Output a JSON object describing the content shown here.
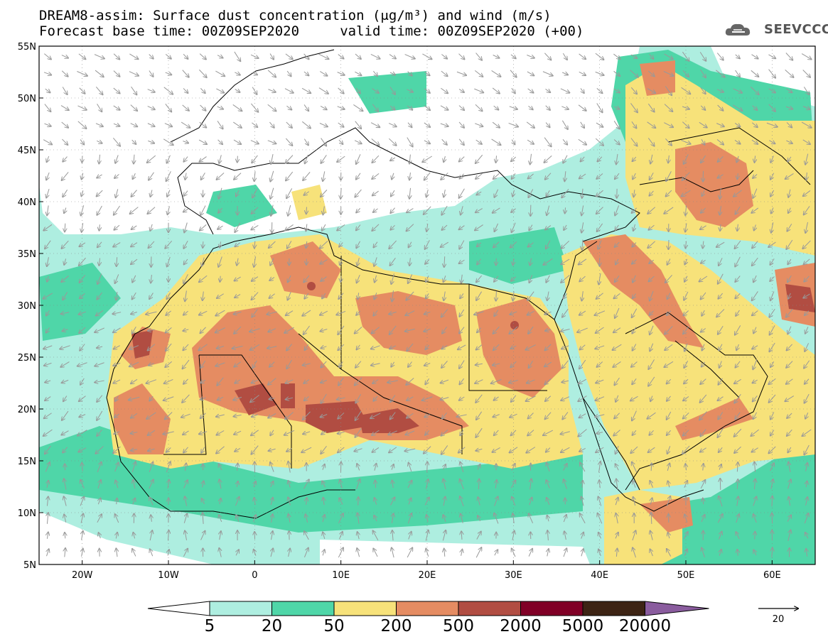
{
  "header": {
    "title_line1": "DREAM8-assim: Surface dust concentration (μg/m³) and wind (m/s)",
    "title_line2": "Forecast base time: 00Z09SEP2020     valid time: 00Z09SEP2020 (+00)",
    "logo_text": "SEEVCCC"
  },
  "map": {
    "lat_labels": [
      "55N",
      "50N",
      "45N",
      "40N",
      "35N",
      "30N",
      "25N",
      "20N",
      "15N",
      "10N",
      "5N"
    ],
    "lon_labels": [
      "20W",
      "10W",
      "0",
      "10E",
      "20E",
      "30E",
      "40E",
      "50E",
      "60E"
    ],
    "lat_range": [
      5,
      55
    ],
    "lon_range": [
      -25,
      65
    ]
  },
  "legend": {
    "thresholds": [
      "5",
      "20",
      "50",
      "200",
      "500",
      "2000",
      "5000",
      "20000"
    ],
    "colors": [
      "#ffffff",
      "#aeeee0",
      "#4fd6a8",
      "#f7e27a",
      "#e58c62",
      "#b14d42",
      "#800026",
      "#3d2414",
      "#8a5c9e"
    ],
    "wind_reference": "20"
  }
}
